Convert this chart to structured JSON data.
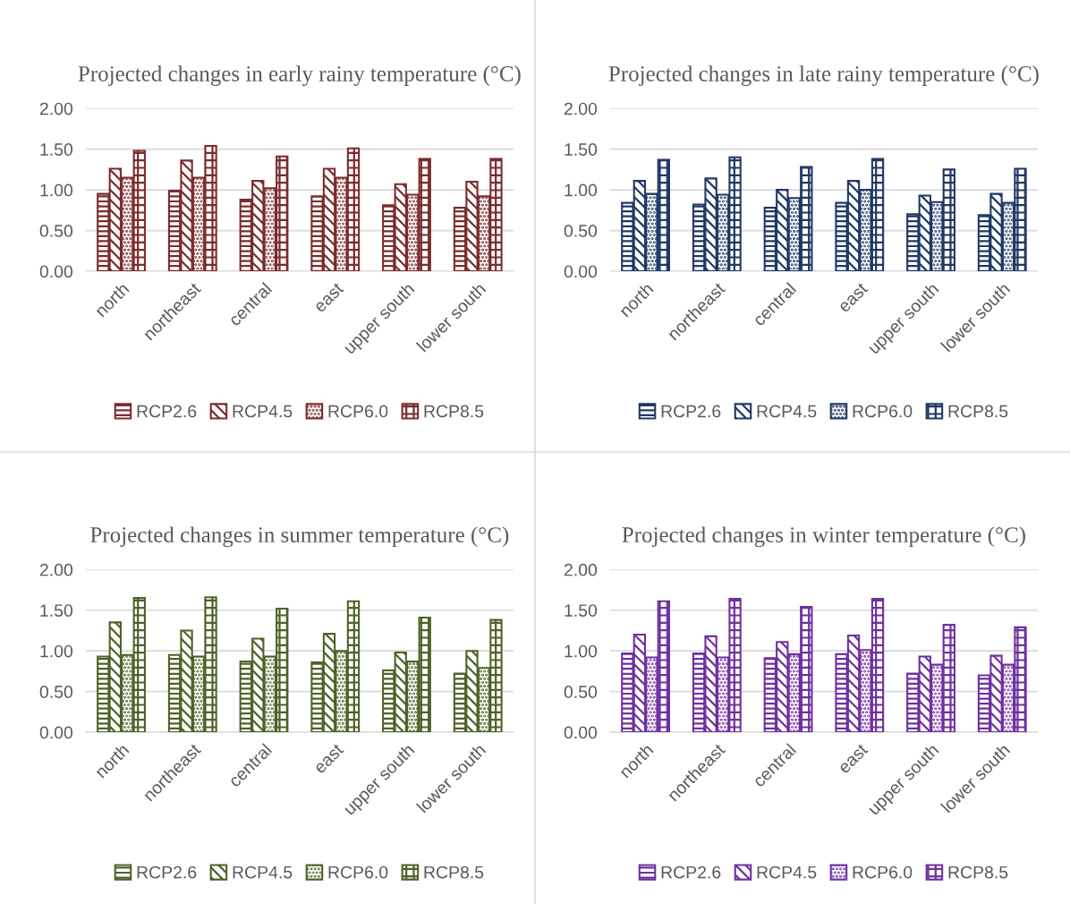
{
  "chart_data": [
    {
      "type": "bar",
      "title": "Projected changes in early rainy temperature (°C)",
      "categories": [
        "north",
        "northeast",
        "central",
        "east",
        "upper south",
        "lower south"
      ],
      "ylim": [
        0,
        2
      ],
      "yticks": [
        {
          "value": 0,
          "label": "0.00"
        },
        {
          "value": 0.5,
          "label": "0.50"
        },
        {
          "value": 1,
          "label": "1.00"
        },
        {
          "value": 1.5,
          "label": "1.50"
        },
        {
          "value": 2,
          "label": "2.00"
        }
      ],
      "grid": "y",
      "legend": "bottom",
      "series": [
        {
          "name": "RCP2.6",
          "color": "#7b2c2c",
          "values": [
            0.95,
            0.99,
            0.88,
            0.92,
            0.81,
            0.78
          ]
        },
        {
          "name": "RCP4.5",
          "color": "#7b2c2c",
          "values": [
            1.26,
            1.36,
            1.11,
            1.26,
            1.07,
            1.1
          ]
        },
        {
          "name": "RCP6.0",
          "color": "#7b2c2c",
          "values": [
            1.15,
            1.15,
            1.02,
            1.15,
            0.94,
            0.92
          ]
        },
        {
          "name": "RCP8.5",
          "color": "#7b2c2c",
          "values": [
            1.48,
            1.54,
            1.41,
            1.51,
            1.38,
            1.38
          ]
        }
      ]
    },
    {
      "type": "bar",
      "title": "Projected changes in late rainy temperature (°C)",
      "categories": [
        "north",
        "northeast",
        "central",
        "east",
        "upper south",
        "lower south"
      ],
      "ylim": [
        0,
        2
      ],
      "yticks": [
        {
          "value": 0,
          "label": "0.00"
        },
        {
          "value": 0.5,
          "label": "0.50"
        },
        {
          "value": 1,
          "label": "1.00"
        },
        {
          "value": 1.5,
          "label": "1.50"
        },
        {
          "value": 2,
          "label": "2.00"
        }
      ],
      "grid": "y",
      "legend": "bottom",
      "series": [
        {
          "name": "RCP2.6",
          "color": "#203864",
          "values": [
            0.84,
            0.82,
            0.78,
            0.84,
            0.7,
            0.69
          ]
        },
        {
          "name": "RCP4.5",
          "color": "#203864",
          "values": [
            1.11,
            1.14,
            1.0,
            1.11,
            0.93,
            0.95
          ]
        },
        {
          "name": "RCP6.0",
          "color": "#203864",
          "values": [
            0.95,
            0.94,
            0.9,
            1.0,
            0.85,
            0.84
          ]
        },
        {
          "name": "RCP8.5",
          "color": "#203864",
          "values": [
            1.37,
            1.4,
            1.28,
            1.38,
            1.25,
            1.26
          ]
        }
      ]
    },
    {
      "type": "bar",
      "title": "Projected changes in summer temperature (°C)",
      "categories": [
        "north",
        "northeast",
        "central",
        "east",
        "upper south",
        "lower south"
      ],
      "ylim": [
        0,
        2
      ],
      "yticks": [
        {
          "value": 0,
          "label": "0.00"
        },
        {
          "value": 0.5,
          "label": "0.50"
        },
        {
          "value": 1,
          "label": "1.00"
        },
        {
          "value": 1.5,
          "label": "1.50"
        },
        {
          "value": 2,
          "label": "2.00"
        }
      ],
      "grid": "y",
      "legend": "bottom",
      "series": [
        {
          "name": "RCP2.6",
          "color": "#4f6228",
          "values": [
            0.93,
            0.95,
            0.87,
            0.86,
            0.76,
            0.72
          ]
        },
        {
          "name": "RCP4.5",
          "color": "#4f6228",
          "values": [
            1.35,
            1.25,
            1.15,
            1.21,
            0.98,
            1.0
          ]
        },
        {
          "name": "RCP6.0",
          "color": "#4f6228",
          "values": [
            0.95,
            0.93,
            0.93,
            1.0,
            0.87,
            0.79
          ]
        },
        {
          "name": "RCP8.5",
          "color": "#4f6228",
          "values": [
            1.65,
            1.66,
            1.52,
            1.61,
            1.41,
            1.38
          ]
        }
      ]
    },
    {
      "type": "bar",
      "title": "Projected changes in winter temperature (°C)",
      "categories": [
        "north",
        "northeast",
        "central",
        "east",
        "upper south",
        "lower south"
      ],
      "ylim": [
        0,
        2
      ],
      "yticks": [
        {
          "value": 0,
          "label": "0.00"
        },
        {
          "value": 0.5,
          "label": "0.50"
        },
        {
          "value": 1,
          "label": "1.00"
        },
        {
          "value": 1.5,
          "label": "1.50"
        },
        {
          "value": 2,
          "label": "2.00"
        }
      ],
      "grid": "y",
      "legend": "bottom",
      "series": [
        {
          "name": "RCP2.6",
          "color": "#7030a0",
          "values": [
            0.97,
            0.97,
            0.91,
            0.96,
            0.72,
            0.7
          ]
        },
        {
          "name": "RCP4.5",
          "color": "#7030a0",
          "values": [
            1.2,
            1.18,
            1.11,
            1.19,
            0.93,
            0.94
          ]
        },
        {
          "name": "RCP6.0",
          "color": "#7030a0",
          "values": [
            0.92,
            0.92,
            0.96,
            1.01,
            0.83,
            0.83
          ]
        },
        {
          "name": "RCP8.5",
          "color": "#7030a0",
          "values": [
            1.61,
            1.64,
            1.54,
            1.64,
            1.32,
            1.29
          ]
        }
      ]
    }
  ]
}
